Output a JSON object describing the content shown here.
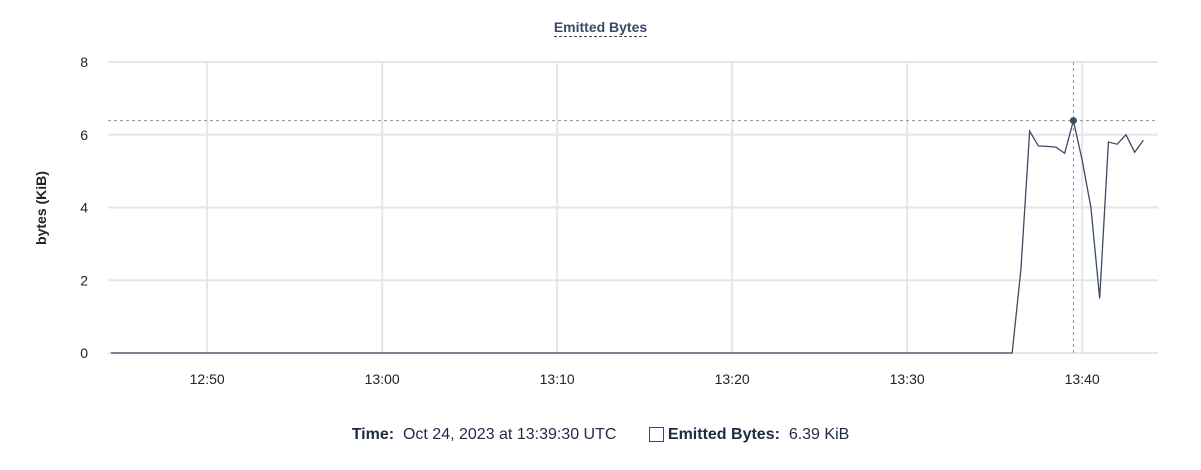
{
  "chart_data": {
    "type": "line",
    "title": "Emitted Bytes",
    "xlabel": "",
    "ylabel": "bytes (KiB)",
    "xlim": [
      "12:44:20",
      "13:44:20"
    ],
    "ylim": [
      0,
      8
    ],
    "x_ticks": [
      "12:50",
      "13:00",
      "13:10",
      "13:20",
      "13:30",
      "13:40"
    ],
    "y_ticks": [
      0,
      2,
      4,
      6,
      8
    ],
    "grid": true,
    "color": "#3c4a64",
    "series": [
      {
        "name": "Emitted Bytes",
        "points": [
          [
            "12:44:30",
            0
          ],
          [
            "13:36:00",
            0
          ],
          [
            "13:36:30",
            2.3
          ],
          [
            "13:37:00",
            6.1
          ],
          [
            "13:37:30",
            5.69
          ],
          [
            "13:38:00",
            5.68
          ],
          [
            "13:38:30",
            5.66
          ],
          [
            "13:39:00",
            5.49
          ],
          [
            "13:39:30",
            6.39
          ],
          [
            "13:40:00",
            5.3
          ],
          [
            "13:40:30",
            4.0
          ],
          [
            "13:41:00",
            1.5
          ],
          [
            "13:41:30",
            5.8
          ],
          [
            "13:42:00",
            5.74
          ],
          [
            "13:42:30",
            6.0
          ],
          [
            "13:43:00",
            5.52
          ],
          [
            "13:43:30",
            5.85
          ]
        ]
      }
    ],
    "highlight": {
      "x": "13:39:30",
      "y": 6.39
    }
  },
  "legend": {
    "time_label": "Time:",
    "time_value": "Oct 24, 2023 at 13:39:30 UTC",
    "series_label": "Emitted Bytes:",
    "series_value": "6.39 KiB"
  }
}
